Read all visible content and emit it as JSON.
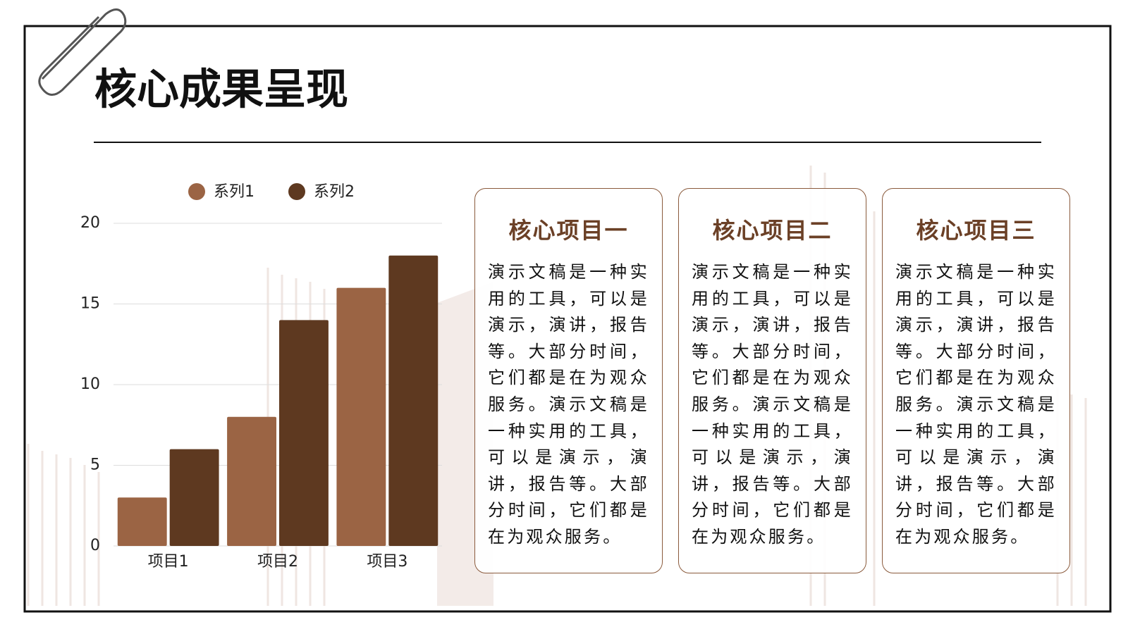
{
  "header": {
    "title": "核心成果呈现"
  },
  "chart_data": {
    "type": "bar",
    "categories": [
      "项目1",
      "项目2",
      "项目3"
    ],
    "series": [
      {
        "name": "系列1",
        "color": "#9b6444",
        "values": [
          3,
          8,
          16
        ]
      },
      {
        "name": "系列2",
        "color": "#5e3920",
        "values": [
          6,
          14,
          18
        ]
      }
    ],
    "ylim": [
      0,
      20
    ],
    "yticks": [
      0,
      5,
      10,
      15,
      20
    ],
    "grid": true
  },
  "cards": [
    {
      "title": "核心项目一",
      "text": "演示文稿是一种实用的工具，可以是演示，演讲，报告等。大部分时间，它们都是在为观众服务。演示文稿是一种实用的工具，可以是演示，演讲，报告等。大部分时间，它们都是在为观众服务。"
    },
    {
      "title": "核心项目二",
      "text": "演示文稿是一种实用的工具，可以是演示，演讲，报告等。大部分时间，它们都是在为观众服务。演示文稿是一种实用的工具，可以是演示，演讲，报告等。大部分时间，它们都是在为观众服务。"
    },
    {
      "title": "核心项目三",
      "text": "演示文稿是一种实用的工具，可以是演示，演讲，报告等。大部分时间，它们都是在为观众服务。演示文稿是一种实用的工具，可以是演示，演讲，报告等。大部分时间，它们都是在为观众服务。"
    }
  ]
}
